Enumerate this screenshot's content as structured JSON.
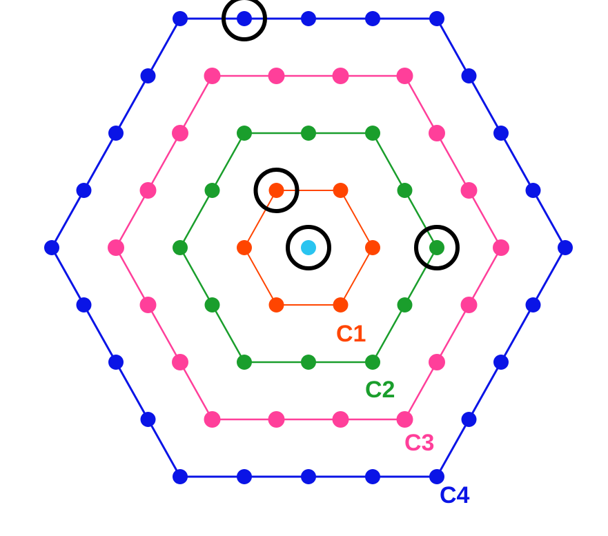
{
  "figure": {
    "center": {
      "color": "#29c4f0"
    },
    "highlight_color": "#000000",
    "rings": [
      {
        "name": "C1",
        "label": "C1",
        "order": 1,
        "color": "#ff4500",
        "points_per_side": 1
      },
      {
        "name": "C2",
        "label": "C2",
        "order": 2,
        "color": "#1a9e2c",
        "points_per_side": 2
      },
      {
        "name": "C3",
        "label": "C3",
        "order": 3,
        "color": "#ff3f9a",
        "points_per_side": 3
      },
      {
        "name": "C4",
        "label": "C4",
        "order": 4,
        "color": "#0a14e6",
        "points_per_side": 4
      }
    ],
    "highlighted_points": [
      {
        "ring": "center"
      },
      {
        "ring": "C1",
        "vertex": "upper-left"
      },
      {
        "ring": "C2",
        "vertex": "right"
      },
      {
        "ring": "C4",
        "edge": "top",
        "index": 1
      }
    ]
  }
}
